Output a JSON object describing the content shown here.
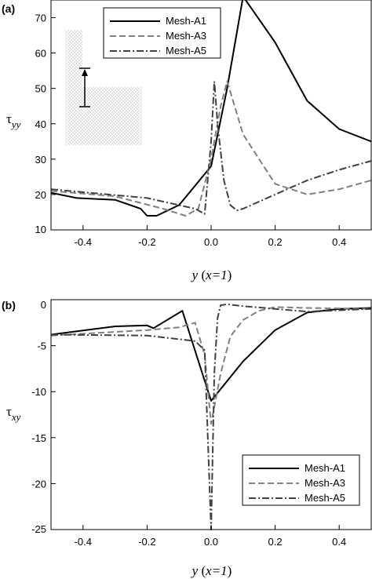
{
  "chart_data": [
    {
      "type": "line",
      "panel_label": "(a)",
      "xlabel": "y (x=1)",
      "xlabel_var": "y",
      "xlabel_paren": "x=1",
      "ylabel": "τyy",
      "ylabel_symbol": "τ",
      "ylabel_sub": "yy",
      "xlim": [
        -0.5,
        0.5
      ],
      "ylim": [
        10,
        75
      ],
      "xticks": [
        -0.4,
        -0.2,
        0.0,
        0.2,
        0.4
      ],
      "xtick_labels": [
        "-0.4",
        "-0.2",
        "0.0",
        "0.2",
        "0.4"
      ],
      "yticks": [
        10,
        20,
        30,
        40,
        50,
        60,
        70
      ],
      "ytick_labels": [
        "10",
        "20",
        "30",
        "40",
        "50",
        "60",
        "70"
      ],
      "grid": false,
      "legend": "top-center",
      "inset": "geometry sketch with arrow (upper-left)",
      "series": [
        {
          "name": "Mesh-A1",
          "style": "solid",
          "color": "#000000",
          "x": [
            -0.5,
            -0.42,
            -0.3,
            -0.22,
            -0.2,
            -0.17,
            -0.1,
            0.0,
            0.05,
            0.1,
            0.2,
            0.3,
            0.4,
            0.5
          ],
          "y": [
            20.5,
            19,
            18.5,
            16,
            14,
            14,
            17,
            28,
            50,
            76,
            63,
            46.5,
            38.5,
            35
          ]
        },
        {
          "name": "Mesh-A3",
          "style": "dashed",
          "color": "#808080",
          "x": [
            -0.5,
            -0.3,
            -0.15,
            -0.08,
            -0.04,
            0.0,
            0.03,
            0.05,
            0.1,
            0.2,
            0.3,
            0.4,
            0.5
          ],
          "y": [
            21,
            19.5,
            16,
            14,
            16,
            30,
            45,
            52,
            37,
            23,
            20,
            21.5,
            24
          ]
        },
        {
          "name": "Mesh-A5",
          "style": "dash-dot",
          "color": "#404040",
          "x": [
            -0.5,
            -0.2,
            -0.05,
            -0.02,
            0.0,
            0.01,
            0.02,
            0.04,
            0.06,
            0.08,
            0.1,
            0.2,
            0.3,
            0.4,
            0.5
          ],
          "y": [
            21.5,
            19,
            16,
            14.5,
            35,
            52,
            40,
            24,
            17,
            15.5,
            16,
            20,
            24,
            27,
            29.5
          ]
        }
      ]
    },
    {
      "type": "line",
      "panel_label": "(b)",
      "xlabel": "y (x=1)",
      "xlabel_var": "y",
      "xlabel_paren": "x=1",
      "ylabel": "τxy",
      "ylabel_symbol": "τ",
      "ylabel_sub": "xy",
      "xlim": [
        -0.5,
        0.5
      ],
      "ylim": [
        -25,
        0
      ],
      "xticks": [
        -0.4,
        -0.2,
        0.0,
        0.2,
        0.4
      ],
      "xtick_labels": [
        "-0.4",
        "-0.2",
        "0.0",
        "0.2",
        "0.4"
      ],
      "yticks": [
        -25,
        -20,
        -15,
        -10,
        -5,
        0
      ],
      "ytick_labels": [
        "-25",
        "-20",
        "-15",
        "-10",
        "-5",
        "0"
      ],
      "grid": false,
      "legend": "bottom-right",
      "series": [
        {
          "name": "Mesh-A1",
          "style": "solid",
          "color": "#000000",
          "x": [
            -0.5,
            -0.3,
            -0.2,
            -0.18,
            -0.09,
            0.0,
            0.1,
            0.2,
            0.3,
            0.4,
            0.5
          ],
          "y": [
            -3.8,
            -2.9,
            -2.8,
            -3.1,
            -1.2,
            -11,
            -6.7,
            -3.3,
            -1.4,
            -1.0,
            -0.9
          ]
        },
        {
          "name": "Mesh-A3",
          "style": "dashed",
          "color": "#808080",
          "x": [
            -0.5,
            -0.2,
            -0.1,
            -0.05,
            -0.02,
            0.0,
            0.03,
            0.06,
            0.1,
            0.15,
            0.2,
            0.3,
            0.5
          ],
          "y": [
            -3.9,
            -3.3,
            -3.0,
            -2.5,
            -6,
            -13.5,
            -8,
            -4,
            -2.2,
            -1.2,
            -0.8,
            -0.9,
            -1.0
          ]
        },
        {
          "name": "Mesh-A5",
          "style": "dash-dot",
          "color": "#404040",
          "x": [
            -0.5,
            -0.2,
            -0.05,
            -0.02,
            0.0,
            0.01,
            0.02,
            0.03,
            0.05,
            0.1,
            0.2,
            0.3,
            0.5
          ],
          "y": [
            -3.8,
            -3.9,
            -4.5,
            -5.5,
            -25,
            -8,
            -2,
            -0.6,
            -0.5,
            -0.7,
            -1.0,
            -1.3,
            -1.0
          ]
        }
      ]
    }
  ]
}
